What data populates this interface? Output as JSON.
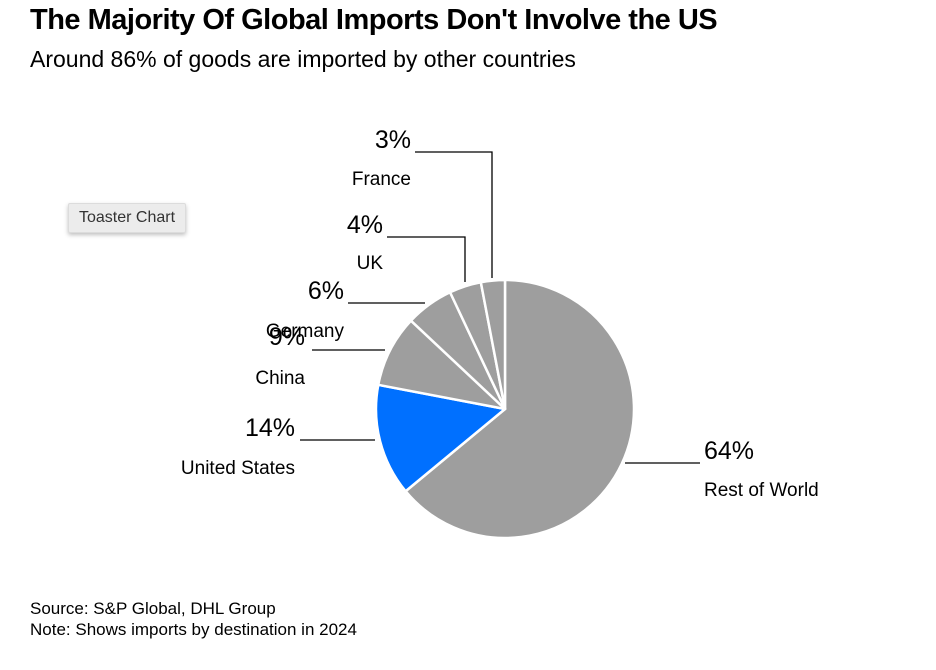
{
  "header": {
    "title": "The Majority Of Global Imports Don't Involve the US",
    "subtitle": "Around 86% of goods are imported by other countries"
  },
  "badge": {
    "label": "Toaster Chart"
  },
  "footer": {
    "source": "Source: S&P Global, DHL Group",
    "note": "Note: Shows imports by destination in 2024"
  },
  "colors": {
    "us": "#0070ff",
    "others": "#9e9e9e",
    "separator": "#ffffff",
    "leader": "#000000"
  },
  "chart_data": {
    "type": "pie",
    "title": "The Majority Of Global Imports Don't Involve the US",
    "subtitle": "Around 86% of goods are imported by other countries",
    "unit": "%",
    "start_angle_deg": 0,
    "direction": "clockwise",
    "slices": [
      {
        "label": "Rest of World",
        "value": 64,
        "value_label": "64%",
        "color": "#9e9e9e"
      },
      {
        "label": "United States",
        "value": 14,
        "value_label": "14%",
        "color": "#0070ff"
      },
      {
        "label": "China",
        "value": 9,
        "value_label": "9%",
        "color": "#9e9e9e"
      },
      {
        "label": "Germany",
        "value": 6,
        "value_label": "6%",
        "color": "#9e9e9e"
      },
      {
        "label": "UK",
        "value": 4,
        "value_label": "4%",
        "color": "#9e9e9e"
      },
      {
        "label": "France",
        "value": 3,
        "value_label": "3%",
        "color": "#9e9e9e"
      }
    ]
  }
}
